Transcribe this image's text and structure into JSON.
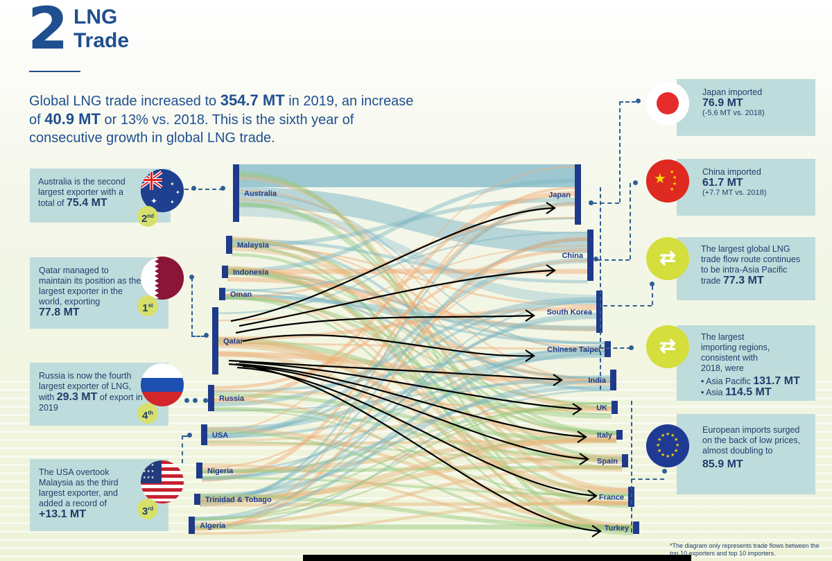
{
  "header": {
    "number": "2",
    "title_line1": "LNG",
    "title_line2": "Trade"
  },
  "intro": {
    "p1": "Global LNG trade increased to ",
    "v1": "354.7 MT",
    "p2": " in 2019, an increase of ",
    "v2": "40.9 MT",
    "p3": " or 13% vs. 2018. This is the sixth year of consecutive growth in global LNG trade."
  },
  "left_cards": {
    "australia": {
      "text": "Australia is the second largest exporter with a total of ",
      "value": "75.4 MT",
      "rank": "2",
      "rank_sup": "nd"
    },
    "qatar": {
      "text": "Qatar managed to maintain its position as the largest exporter in the world, exporting",
      "value": "77.8 MT",
      "rank": "1",
      "rank_sup": "st"
    },
    "russia": {
      "text": "Russia is now the fourth largest exporter of LNG, with ",
      "value": "29.3 MT",
      "text2": " of export in 2019",
      "rank": "4",
      "rank_sup": "th"
    },
    "usa": {
      "text": "The USA overtook Malaysia as the third largest exporter, and added a record of",
      "value": "+13.1 MT",
      "rank": "3",
      "rank_sup": "rd"
    }
  },
  "right_cards": {
    "japan": {
      "line1": "Japan imported",
      "value": "76.9 MT",
      "line3": "(-5.6 MT vs. 2018)"
    },
    "china": {
      "line1": "China imported",
      "value": "61.7 MT",
      "line3": "(+7.7 MT vs. 2018)"
    },
    "route": {
      "text": "The largest global LNG trade flow route continues to be intra-Asia Pacific trade ",
      "value": "77.3 MT"
    },
    "regions": {
      "text": "The largest importing regions, consistent with 2018, were",
      "b1_label": "• Asia Pacific ",
      "b1_value": "131.7 MT",
      "b2_label": "• Asia ",
      "b2_value": "114.5 MT"
    },
    "europe": {
      "text": "European imports surged on the back of low prices, almost doubling to",
      "value": "85.9 MT"
    }
  },
  "chart_data": {
    "type": "sankey",
    "exporters": [
      "Australia",
      "Malaysia",
      "Indonesia",
      "Oman",
      "Qatar",
      "Russia",
      "USA",
      "Nigeria",
      "Trinidad & Tobago",
      "Algeria"
    ],
    "importers": [
      "Japan",
      "China",
      "South Korea",
      "Chinese Taipei",
      "India",
      "UK",
      "Italy",
      "Spain",
      "France",
      "Turkey"
    ],
    "exporter_values_mt": {
      "Australia": 75.4,
      "Qatar": 77.8,
      "Russia": 29.3
    },
    "importer_values_mt": {
      "Japan": 76.9,
      "China": 61.7
    }
  },
  "colors": {
    "navy": "#1f4f8f",
    "card": "#bfdcdc",
    "accent": "#d4de3c",
    "flow_blue": "#7fb8c8",
    "flow_orange": "#f0a86a",
    "flow_green": "#8cc47a"
  },
  "footnote": "*The diagram only represents trade flows between the top 10 exporters and top 10 importers."
}
